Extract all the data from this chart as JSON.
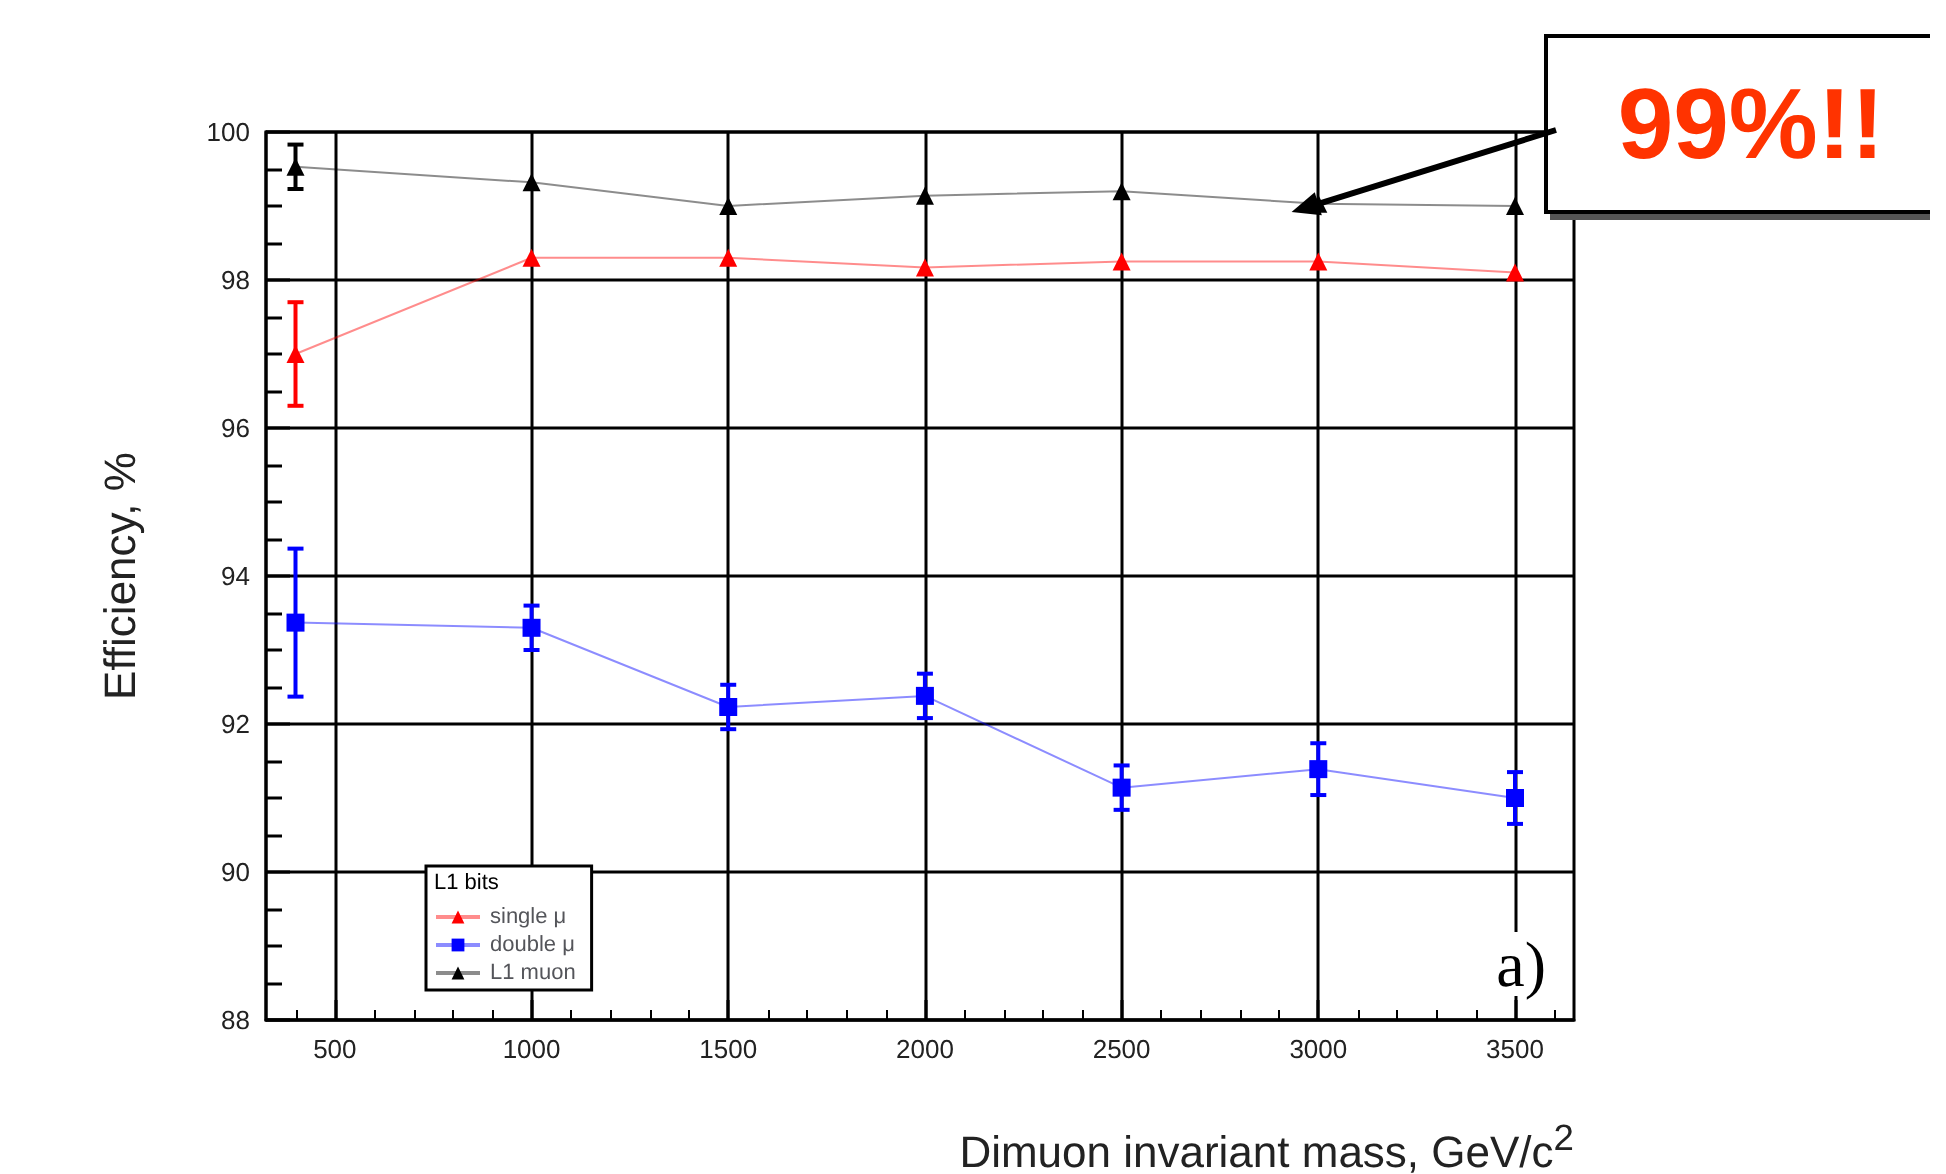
{
  "chart_data": {
    "type": "line",
    "xlabel": "Dimuon invariant mass, GeV/c$^{2}$",
    "ylabel": "Efficiency, %",
    "legend_title": "L1 bits",
    "legend": "bottom left",
    "grid": true,
    "line_style": "solid",
    "x": [
      400,
      1000,
      1500,
      2000,
      2500,
      3000,
      3500
    ],
    "xlim": [
      325,
      3650
    ],
    "xticks": [
      500,
      1000,
      1500,
      2000,
      2500,
      3000,
      3500
    ],
    "ylim": [
      88,
      100
    ],
    "yticks": [
      88,
      90,
      92,
      94,
      96,
      98,
      100
    ],
    "series": [
      {
        "name": "single μ",
        "color": "#ff0000",
        "marker": "triangle",
        "values": [
          97.0,
          98.3,
          98.3,
          98.17,
          98.25,
          98.25,
          98.1
        ],
        "errors": [
          0.7,
          null,
          null,
          null,
          null,
          null,
          null
        ]
      },
      {
        "name": "double μ",
        "color": "#0000ff",
        "marker": "square",
        "values": [
          93.37,
          93.3,
          92.23,
          92.38,
          91.14,
          91.39,
          91.0
        ],
        "errors": [
          1.0,
          0.3,
          0.3,
          0.3,
          0.3,
          0.35,
          0.35
        ]
      },
      {
        "name": "L1 muon",
        "color": "#000000",
        "marker": "triangle",
        "values": [
          99.53,
          99.32,
          99.0,
          99.14,
          99.2,
          99.03,
          99.0
        ],
        "errors": [
          0.3,
          null,
          null,
          null,
          null,
          null,
          null
        ]
      }
    ],
    "annotations": [
      {
        "text": "99%!!",
        "x": 3000,
        "y": 99.03
      },
      "a)"
    ]
  }
}
